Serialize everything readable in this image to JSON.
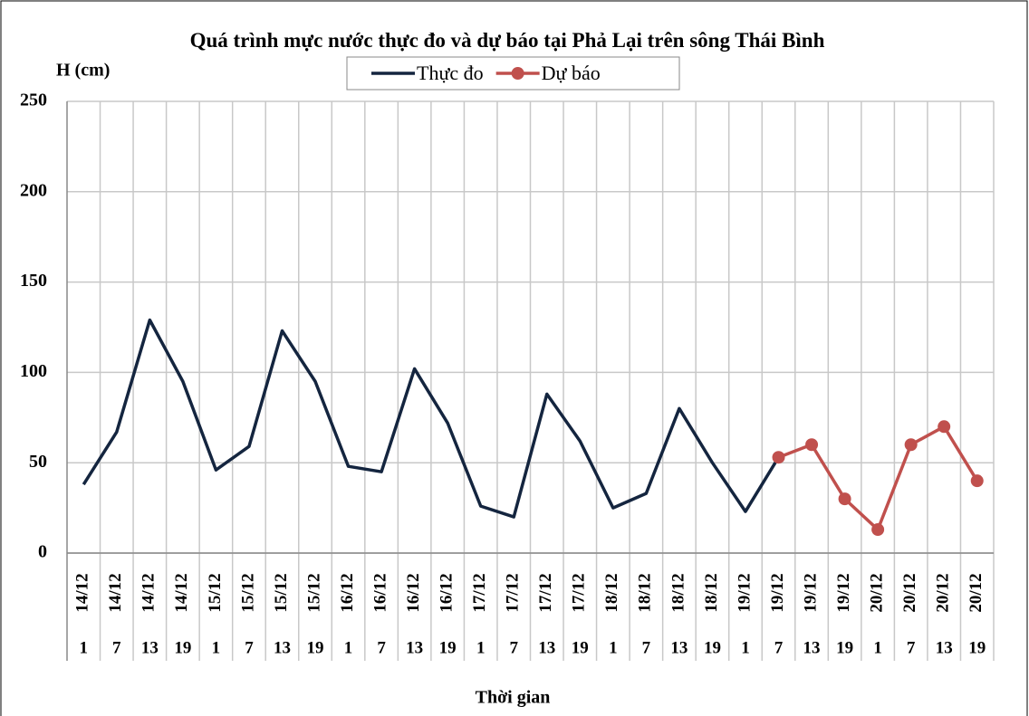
{
  "chart_data": {
    "type": "line",
    "title": "Quá trình mực nước thực đo và dự báo tại Phả Lại trên sông Thái Bình",
    "y_label": "H (cm)",
    "x_label": "Thời gian",
    "categories": [
      "14/12",
      "14/12",
      "14/12",
      "14/12",
      "15/12",
      "15/12",
      "15/12",
      "15/12",
      "16/12",
      "16/12",
      "16/12",
      "16/12",
      "17/12",
      "17/12",
      "17/12",
      "17/12",
      "18/12",
      "18/12",
      "18/12",
      "18/12",
      "19/12",
      "19/12",
      "19/12",
      "19/12",
      "20/12",
      "20/12",
      "20/12",
      "20/12"
    ],
    "subcategories": [
      "1",
      "7",
      "13",
      "19",
      "1",
      "7",
      "13",
      "19",
      "1",
      "7",
      "13",
      "19",
      "1",
      "7",
      "13",
      "19",
      "1",
      "7",
      "13",
      "19",
      "1",
      "7",
      "13",
      "19",
      "1",
      "7",
      "13",
      "19"
    ],
    "series": [
      {
        "name": "Thực đo",
        "color": "#14253f",
        "marker": false,
        "values": [
          38,
          67,
          129,
          95,
          46,
          59,
          123,
          95,
          48,
          45,
          102,
          72,
          26,
          20,
          88,
          62,
          25,
          33,
          80,
          50,
          23,
          53,
          null,
          null,
          null,
          null,
          null,
          null
        ]
      },
      {
        "name": "Dự báo",
        "color": "#c0504d",
        "marker": true,
        "values": [
          null,
          null,
          null,
          null,
          null,
          null,
          null,
          null,
          null,
          null,
          null,
          null,
          null,
          null,
          null,
          null,
          null,
          null,
          null,
          null,
          null,
          53,
          60,
          30,
          13,
          60,
          70,
          40
        ]
      }
    ],
    "ylim": [
      0,
      250
    ],
    "yticks": [
      0,
      50,
      100,
      150,
      200,
      250
    ],
    "grid": true,
    "legend": "top"
  }
}
